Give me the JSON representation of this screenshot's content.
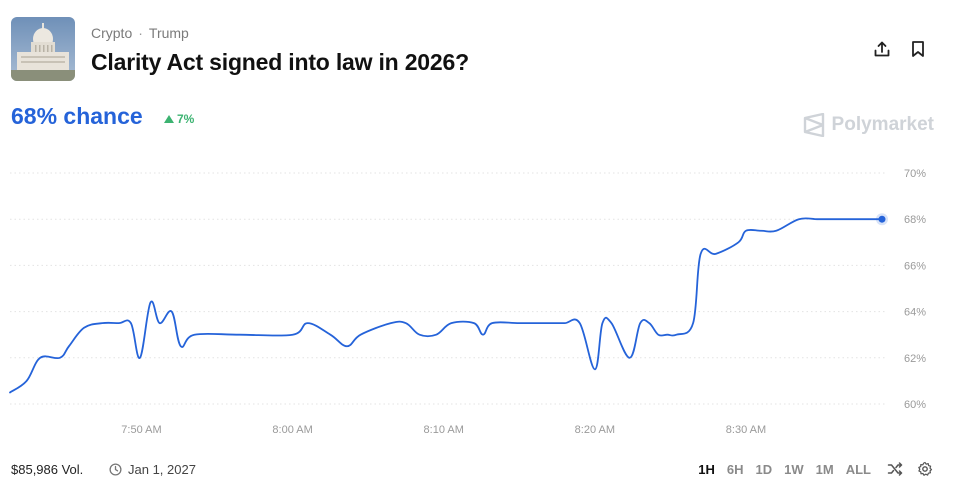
{
  "market": {
    "tags": [
      "Crypto",
      "Trump"
    ],
    "tag_separator": "·",
    "title": "Clarity Act signed into law in 2026?",
    "chance_text": "68% chance",
    "change_text": "7%",
    "brand": "Polymarket"
  },
  "footer": {
    "volume": "$85,986 Vol.",
    "date": "Jan 1, 2027",
    "ranges": [
      "1H",
      "6H",
      "1D",
      "1W",
      "1M",
      "ALL"
    ],
    "active_range": "1H"
  },
  "icons": {
    "share": "share-icon",
    "bookmark": "bookmark-icon",
    "clock": "clock-icon",
    "shuffle": "shuffle-icon",
    "settings": "gear-icon"
  },
  "colors": {
    "accent": "#2563d9",
    "positive": "#3cb371",
    "line": "#2563d9"
  },
  "chart_data": {
    "type": "line",
    "y_unit": "%",
    "ylim": [
      60,
      70
    ],
    "y_ticks": [
      60,
      62,
      64,
      66,
      68,
      70
    ],
    "y_tick_labels": [
      "60%",
      "62%",
      "64%",
      "66%",
      "68%",
      "70%"
    ],
    "x_ticks": [
      "7:50 AM",
      "8:00 AM",
      "8:10 AM",
      "8:20 AM",
      "8:30 AM"
    ],
    "x_tick_minutes": [
      45.0,
      55.0,
      65.0,
      75.0,
      85.0
    ],
    "xlim": [
      36.3,
      94.0
    ],
    "grid": true,
    "legend": "none",
    "series": [
      {
        "x": [
          36.3,
          37.4,
          38.3,
          39.6,
          40.2,
          41.2,
          42.4,
          43.5,
          44.3,
          44.9,
          45.6,
          46.2,
          47.0,
          47.6,
          48.5,
          51.5,
          55.0,
          56.0,
          57.5,
          58.6,
          59.5,
          61.5,
          62.5,
          63.4,
          64.5,
          65.5,
          67.0,
          67.6,
          68.2,
          70.0,
          72.0,
          73.0,
          74.0,
          75.0,
          75.5,
          76.1,
          77.3,
          78.0,
          78.6,
          79.2,
          79.8,
          80.4,
          81.5,
          82.0,
          83.0,
          84.5,
          85.0,
          86.0,
          87.0,
          88.5,
          89.7,
          90.4,
          92.0,
          94.0
        ],
        "y": [
          60.5,
          61.0,
          62.0,
          62.0,
          62.5,
          63.3,
          63.5,
          63.5,
          63.5,
          62.0,
          64.4,
          63.5,
          64.0,
          62.5,
          63.0,
          63.0,
          63.0,
          63.5,
          63.0,
          62.5,
          63.0,
          63.5,
          63.5,
          63.0,
          63.0,
          63.5,
          63.5,
          63.0,
          63.5,
          63.5,
          63.5,
          63.5,
          63.5,
          61.5,
          63.5,
          63.5,
          62.0,
          63.5,
          63.5,
          63.0,
          63.0,
          63.0,
          63.5,
          66.5,
          66.5,
          67.0,
          67.5,
          67.5,
          67.5,
          68.0,
          68.0,
          68.0,
          68.0,
          68.0
        ]
      }
    ]
  }
}
